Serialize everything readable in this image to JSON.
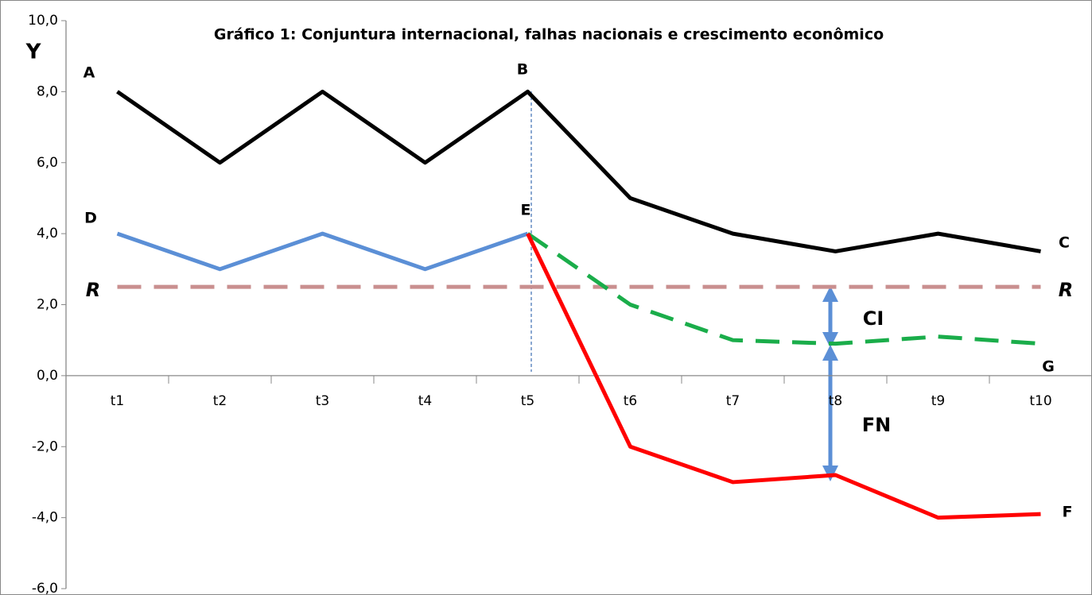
{
  "chart_data": {
    "type": "line",
    "title": "Gráfico 1: Conjuntura internacional, falhas nacionais e crescimento econômico",
    "y_label": "Y",
    "categories": [
      "t1",
      "t2",
      "t3",
      "t4",
      "t5",
      "t6",
      "t7",
      "t8",
      "t9",
      "t10"
    ],
    "series": [
      {
        "color": "#000000",
        "style": "solid",
        "values": [
          8,
          6,
          8,
          6,
          8,
          5,
          4,
          3.5,
          4,
          3.5
        ]
      },
      {
        "color": "#5b8fd6",
        "style": "solid",
        "values": [
          4,
          3,
          4,
          3,
          4,
          null,
          null,
          null,
          null,
          null
        ]
      },
      {
        "color": "#c98f8f",
        "style": "dashed",
        "values": [
          2.5,
          2.5,
          2.5,
          2.5,
          2.5,
          2.5,
          2.5,
          2.5,
          2.5,
          2.5
        ]
      },
      {
        "color": "#1aad4a",
        "style": "dashed",
        "values": [
          null,
          null,
          null,
          null,
          4,
          2,
          1,
          0.9,
          1.1,
          0.9
        ]
      },
      {
        "color": "#ff0000",
        "style": "solid",
        "values": [
          null,
          null,
          null,
          null,
          4,
          -2,
          -3,
          -2.8,
          -4,
          -3.9
        ]
      }
    ],
    "ylim": [
      -6,
      10
    ],
    "yticks": [
      {
        "value": -6,
        "label": "-6,0"
      },
      {
        "value": -4,
        "label": "-4,0"
      },
      {
        "value": -2,
        "label": "-2,0"
      },
      {
        "value": 0,
        "label": "0,0"
      },
      {
        "value": 2,
        "label": "2,0"
      },
      {
        "value": 4,
        "label": "4,0"
      },
      {
        "value": 6,
        "label": "6,0"
      },
      {
        "value": 8,
        "label": "8,0"
      },
      {
        "value": 10,
        "label": "10,0"
      }
    ],
    "annotations": [
      "A",
      "B",
      "C",
      "D",
      "E",
      "F",
      "G",
      "R",
      "R",
      "CI",
      "FN"
    ]
  }
}
